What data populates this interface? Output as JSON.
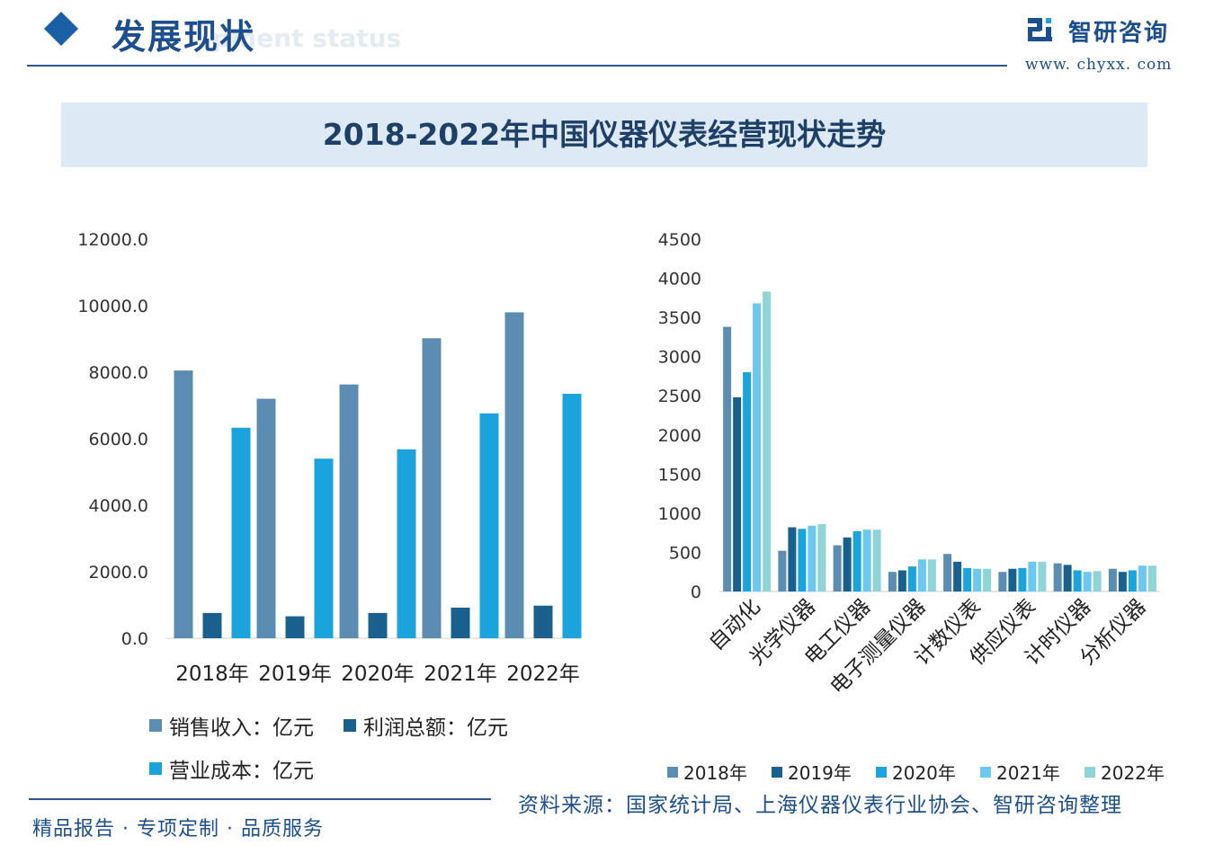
{
  "header": {
    "title": "发展现状",
    "subtitle": "pment status",
    "brand_name": "智研咨询",
    "brand_url": "www. chyxx. com"
  },
  "banner_title": "2018-2022年中国仪器仪表经营现状走势",
  "footer": {
    "slogan": "精品报告 · 专项定制 · 品质服务",
    "source": "资料来源：国家统计局、上海仪器仪表行业协会、智研咨询整理"
  },
  "colors": {
    "brand": "#1b4f8f",
    "banner_bg": "#dde9f4"
  },
  "chart_data": [
    {
      "type": "bar",
      "title": "",
      "categories": [
        "2018年",
        "2019年",
        "2020年",
        "2021年",
        "2022年"
      ],
      "ylim": [
        0,
        12000
      ],
      "yticks": [
        "0.0",
        "2000.0",
        "4000.0",
        "6000.0",
        "8000.0",
        "10000.0",
        "12000.0"
      ],
      "grid": false,
      "legend_position": "bottom",
      "series": [
        {
          "name": "销售收入：亿元",
          "color": "#5b8db3",
          "values": [
            8050,
            7200,
            7630,
            9020,
            9800
          ]
        },
        {
          "name": "利润总额：亿元",
          "color": "#19608f",
          "values": [
            760,
            660,
            760,
            920,
            980
          ]
        },
        {
          "name": "营业成本：亿元",
          "color": "#1ba3de",
          "values": [
            6330,
            5400,
            5680,
            6760,
            7350
          ]
        }
      ]
    },
    {
      "type": "bar",
      "title": "",
      "categories": [
        "自动化",
        "光学仪器",
        "电工仪器",
        "电子测量仪器",
        "计数仪表",
        "供应仪表",
        "计时仪器",
        "分析仪器"
      ],
      "ylim": [
        0,
        4500
      ],
      "yticks": [
        "0",
        "500",
        "1000",
        "1500",
        "2000",
        "2500",
        "3000",
        "3500",
        "4000",
        "4500"
      ],
      "grid": false,
      "legend_position": "bottom",
      "series": [
        {
          "name": "2018年",
          "color": "#5b8db3",
          "values": [
            3380,
            520,
            590,
            250,
            480,
            250,
            360,
            290
          ]
        },
        {
          "name": "2019年",
          "color": "#19608f",
          "values": [
            2480,
            820,
            690,
            270,
            380,
            290,
            340,
            250
          ]
        },
        {
          "name": "2020年",
          "color": "#1ba3de",
          "values": [
            2800,
            800,
            770,
            320,
            300,
            300,
            270,
            270
          ]
        },
        {
          "name": "2021年",
          "color": "#6cc8ee",
          "values": [
            3680,
            840,
            790,
            410,
            290,
            380,
            250,
            330
          ]
        },
        {
          "name": "2022年",
          "color": "#8fd4d6",
          "values": [
            3830,
            860,
            790,
            410,
            290,
            380,
            260,
            330
          ]
        }
      ]
    }
  ]
}
